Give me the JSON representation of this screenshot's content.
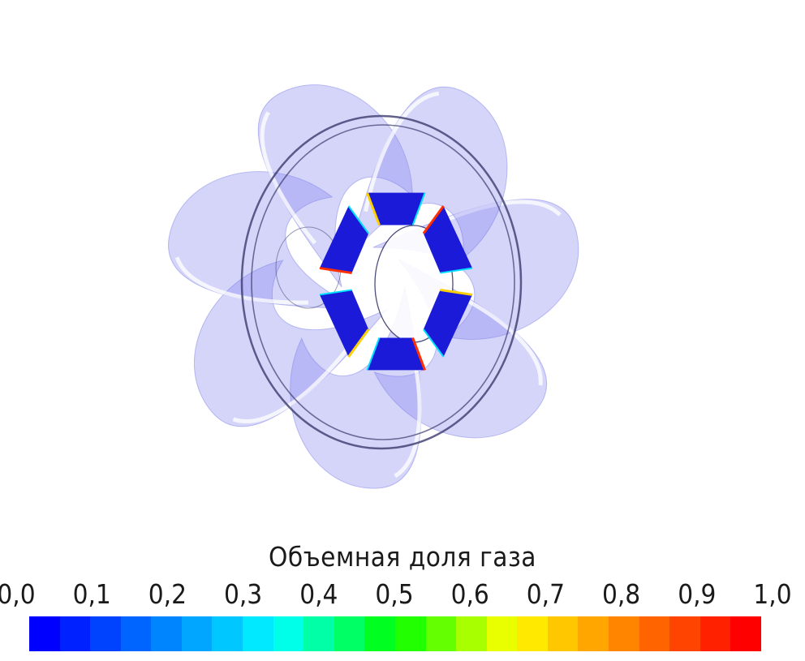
{
  "legend": {
    "title": "Объемная доля газа",
    "ticks": [
      "0,0",
      "0,1",
      "0,2",
      "0,3",
      "0,4",
      "0,5",
      "0,6",
      "0,7",
      "0,8",
      "0,9",
      "1,0"
    ],
    "min": 0.0,
    "max": 1.0,
    "colors": [
      "#0000ff",
      "#0040ff",
      "#0080ff",
      "#00bfff",
      "#00ffff",
      "#00ff80",
      "#00ff00",
      "#80ff00",
      "#ffff00",
      "#ffbf00",
      "#ff8000",
      "#ff4000",
      "#ff0000"
    ]
  },
  "colors": {
    "blade_fill": "#7b7cf0",
    "ring_stroke": "#3a3a6e",
    "hub_fill": "#1a1ad8"
  }
}
